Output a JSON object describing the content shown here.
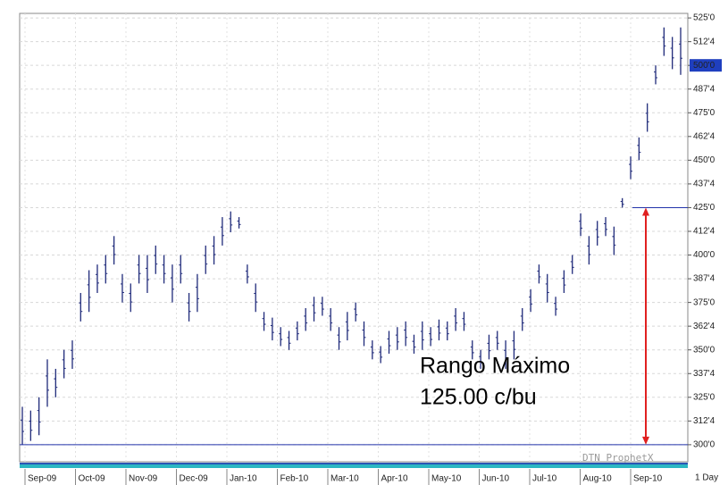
{
  "chart_data": {
    "type": "range_bar",
    "color": "#1f2a7a",
    "high": [
      320,
      318,
      325,
      345,
      340,
      350,
      355,
      380,
      392,
      395,
      400,
      410,
      390,
      385,
      400,
      400,
      405,
      400,
      395,
      400,
      380,
      390,
      405,
      410,
      420,
      423,
      420,
      395,
      385,
      370,
      367,
      362,
      360,
      365,
      372,
      378,
      378,
      372,
      362,
      370,
      375,
      365,
      355,
      352,
      360,
      362,
      365,
      358,
      365,
      362,
      366,
      365,
      372,
      370,
      355,
      350,
      358,
      360,
      355,
      360,
      372,
      382,
      395,
      390,
      378,
      392,
      400,
      422,
      410,
      418,
      420,
      415,
      430,
      452,
      462,
      480,
      500,
      520,
      515,
      520
    ],
    "low": [
      300,
      302,
      305,
      320,
      325,
      335,
      340,
      365,
      370,
      380,
      385,
      395,
      375,
      370,
      385,
      380,
      390,
      385,
      375,
      385,
      365,
      370,
      390,
      395,
      405,
      412,
      414,
      385,
      370,
      360,
      355,
      352,
      350,
      355,
      360,
      365,
      368,
      360,
      350,
      355,
      365,
      352,
      345,
      343,
      348,
      350,
      352,
      348,
      350,
      352,
      355,
      355,
      360,
      360,
      345,
      340,
      345,
      350,
      340,
      345,
      360,
      370,
      385,
      375,
      368,
      380,
      390,
      410,
      395,
      405,
      410,
      400,
      425,
      440,
      450,
      465,
      490,
      505,
      498,
      495
    ],
    "months": [
      "Sep-09",
      "Oct-09",
      "Nov-09",
      "Dec-09",
      "Jan-10",
      "Feb-10",
      "Mar-10",
      "Apr-10",
      "May-10",
      "Jun-10",
      "Jul-10",
      "Aug-10",
      "Sep-10"
    ],
    "ylim": [
      291,
      527.4
    ],
    "yticks": [
      {
        "value": 300,
        "label": "300'0"
      },
      {
        "value": 312.5,
        "label": "312'4"
      },
      {
        "value": 325,
        "label": "325'0"
      },
      {
        "value": 337.5,
        "label": "337'4"
      },
      {
        "value": 350,
        "label": "350'0"
      },
      {
        "value": 362.5,
        "label": "362'4"
      },
      {
        "value": 375,
        "label": "375'0"
      },
      {
        "value": 387.5,
        "label": "387'4"
      },
      {
        "value": 400,
        "label": "400'0"
      },
      {
        "value": 412.5,
        "label": "412'4"
      },
      {
        "value": 425,
        "label": "425'0"
      },
      {
        "value": 437.5,
        "label": "437'4"
      },
      {
        "value": 450,
        "label": "450'0"
      },
      {
        "value": 462.5,
        "label": "462'4"
      },
      {
        "value": 475,
        "label": "475'0"
      },
      {
        "value": 487.5,
        "label": "487'4"
      },
      {
        "value": 500,
        "label": "500'0"
      },
      {
        "value": 512.5,
        "label": "512'4"
      },
      {
        "value": 525,
        "label": "525'0"
      }
    ],
    "last_price": 500,
    "grid": true,
    "hlines": [
      425,
      300
    ],
    "arrow": {
      "from": 425,
      "to": 300
    },
    "annotations": [
      "Rango Máximo",
      "125.00 c/bu"
    ],
    "watermark": "DTN ProphetX",
    "interval": "1 Day"
  }
}
